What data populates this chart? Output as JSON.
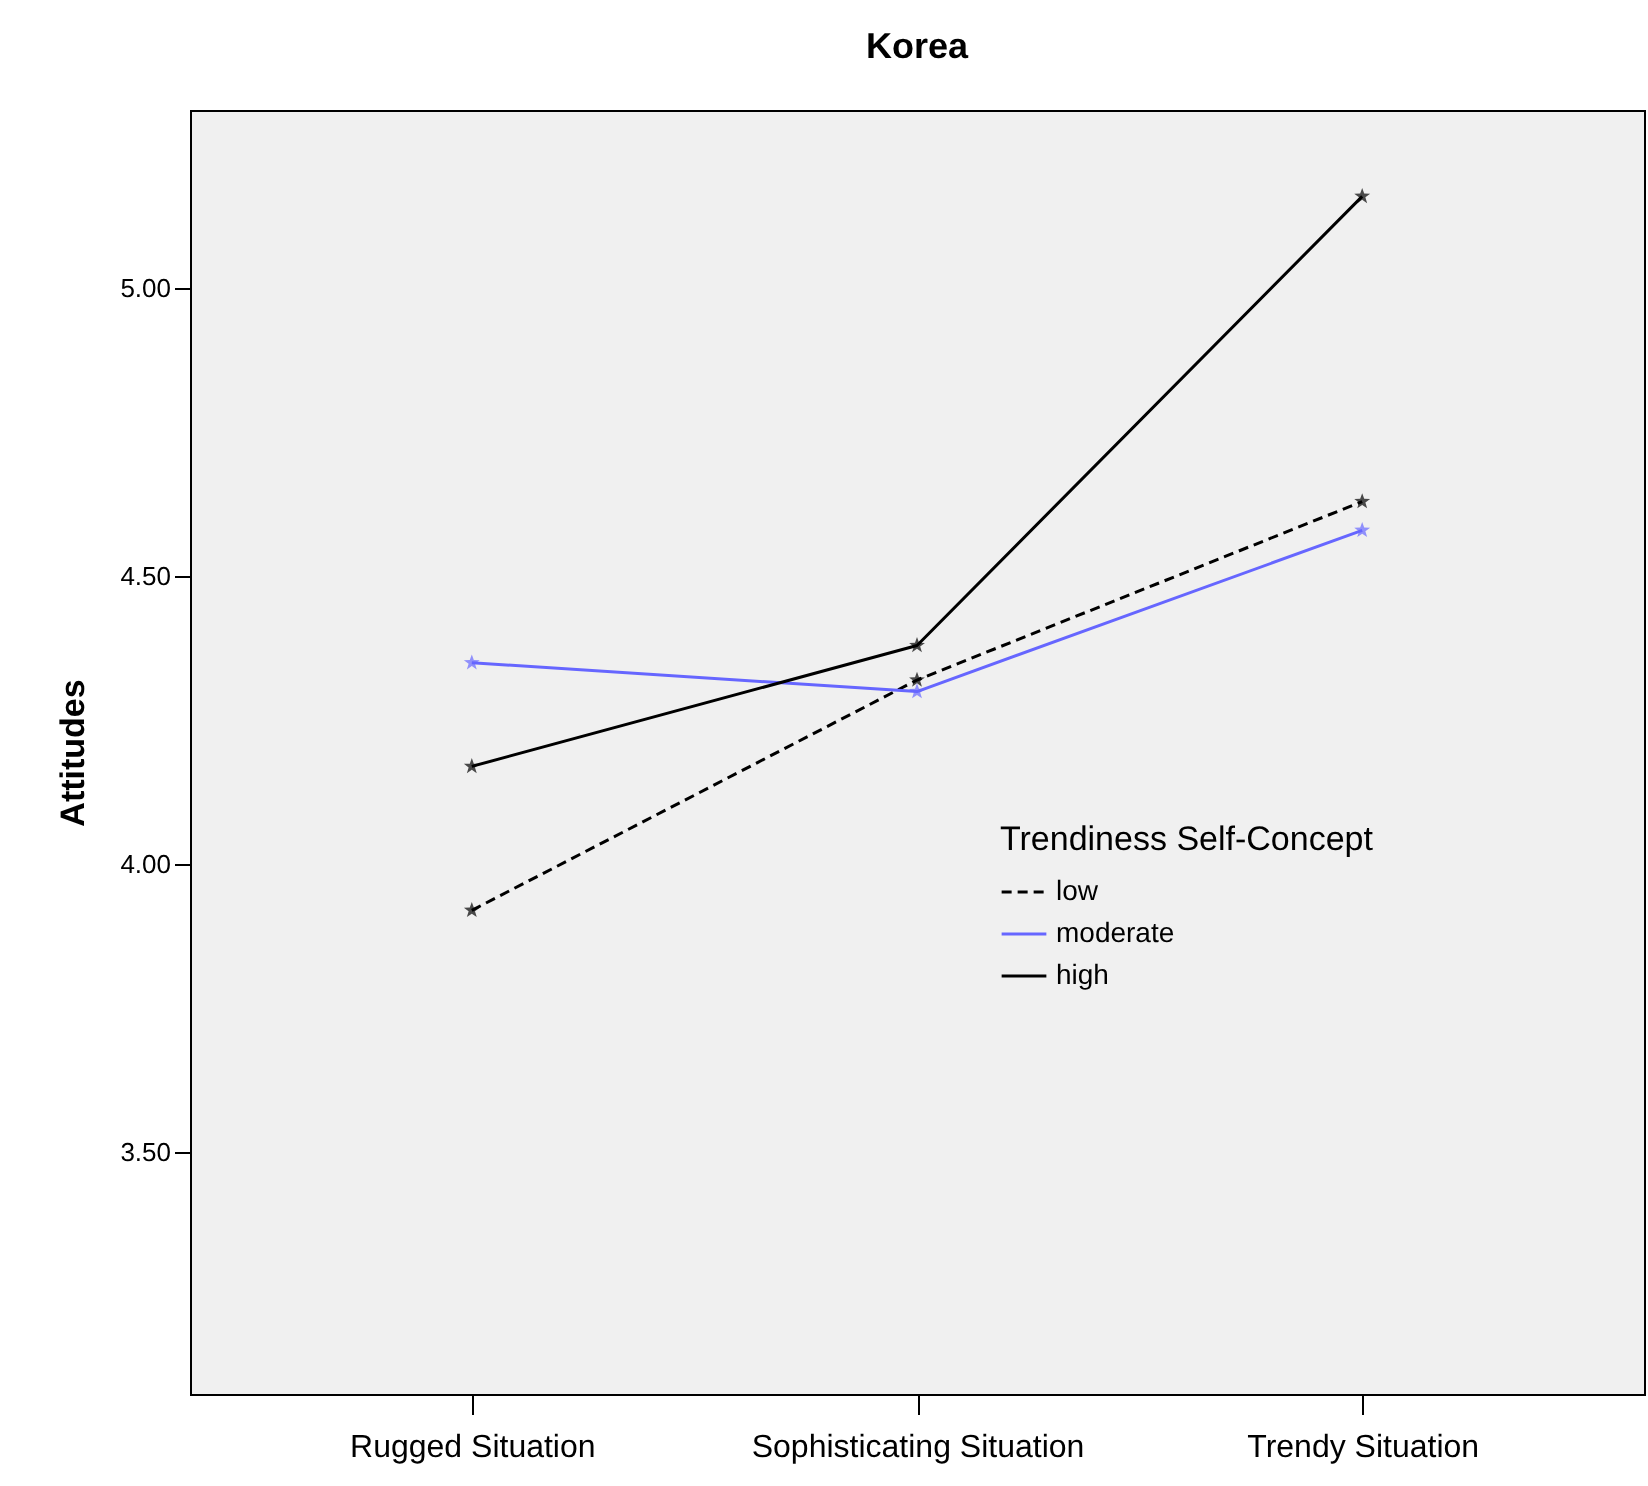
{
  "chart_data": {
    "type": "line",
    "title": "Korea",
    "ylabel": "Attitudes",
    "legend_title": "Trendiness Self-Concept",
    "legend": "right",
    "marker": "star",
    "grid": false,
    "categories": [
      "Rugged Situation",
      "Sophisticating Situation",
      "Trendy Situation"
    ],
    "ylim": [
      3.08,
      5.31
    ],
    "yticks": [
      {
        "value": 3.5,
        "label": "3.50"
      },
      {
        "value": 4,
        "label": "4.00"
      },
      {
        "value": 4.5,
        "label": "4.50"
      },
      {
        "value": 5,
        "label": "5.00"
      }
    ],
    "series": [
      {
        "name": "low",
        "color": "#000000",
        "line_style": "dashed",
        "values": [
          3.92,
          4.32,
          4.63
        ]
      },
      {
        "name": "moderate",
        "color": "#6666ff",
        "line_style": "solid",
        "values": [
          4.35,
          4.3,
          4.58
        ]
      },
      {
        "name": "high",
        "color": "#000000",
        "line_style": "solid",
        "values": [
          4.17,
          4.38,
          5.16
        ]
      }
    ]
  }
}
